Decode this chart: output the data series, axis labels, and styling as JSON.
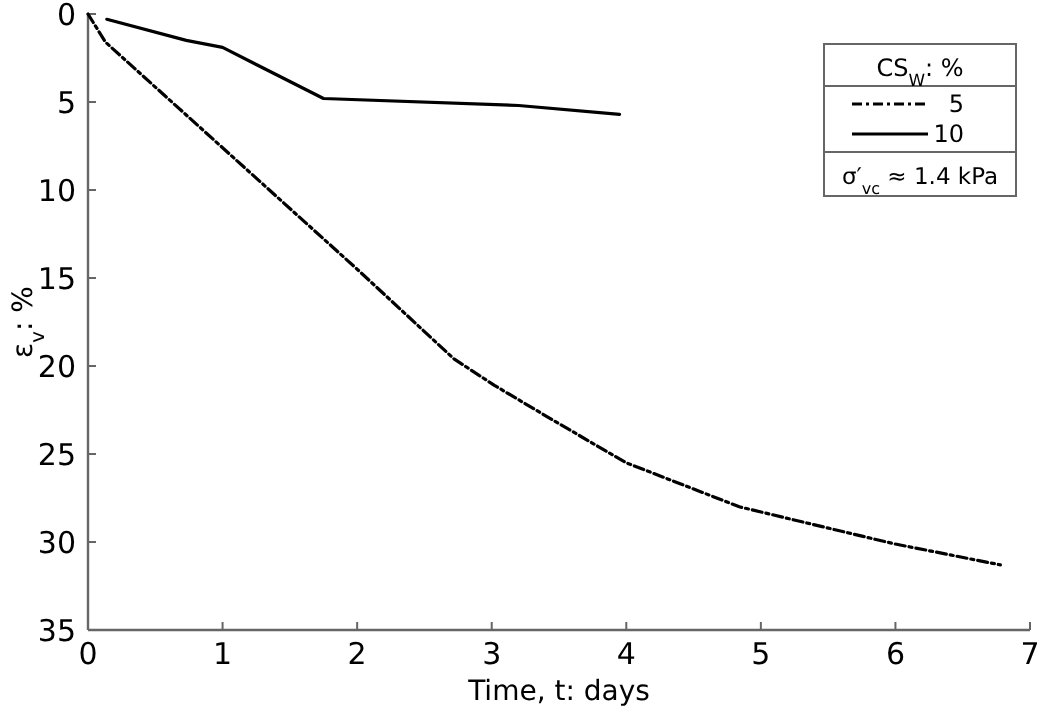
{
  "chart_data": {
    "type": "line",
    "xlabel": "Time, t: days",
    "ylabel": "ε$_{v}$: %",
    "legend_title": "CS$_{W}$: %",
    "annotations": [
      "σ′$_{vc}$ ≈ 1.4 kPa"
    ],
    "xlim": [
      0,
      7
    ],
    "ylim": [
      35,
      0
    ],
    "xticks": [
      0,
      1,
      2,
      3,
      4,
      5,
      6,
      7
    ],
    "yticks": [
      0,
      5,
      10,
      15,
      20,
      25,
      30,
      35
    ],
    "grid": false,
    "legend": "top right",
    "marker": "none",
    "series": [
      {
        "name": "5",
        "color": "#000000",
        "line_style": "dashed",
        "x": [
          0,
          0.13,
          1,
          2,
          2.72,
          3.02,
          3.46,
          4,
          4.84,
          5.44,
          5.99,
          6.78
        ],
        "values": [
          0,
          1.6,
          7.6,
          14.5,
          19.6,
          21.1,
          23.1,
          25.5,
          28,
          29.1,
          30.1,
          31.3
        ]
      },
      {
        "name": "10",
        "color": "#000000",
        "line_style": "solid",
        "x": [
          0.14,
          0.73,
          1,
          1.75,
          3.2,
          3.95
        ],
        "values": [
          0.3,
          1.5,
          1.9,
          4.8,
          5.2,
          5.7
        ]
      }
    ]
  }
}
